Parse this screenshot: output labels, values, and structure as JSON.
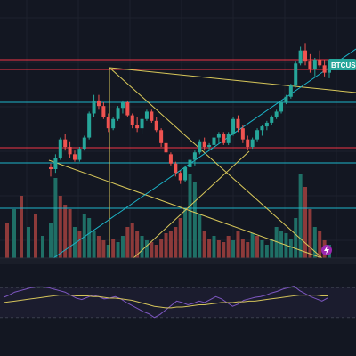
{
  "symbol": "BTCUSDT",
  "colors": {
    "background": "#131722",
    "grid": "#1e222d",
    "bull": "#26a69a",
    "bear": "#ef5350",
    "bull_volume": "#1f6f66",
    "bear_volume": "#8d3a3a",
    "red_line": "#f23645",
    "cyan_line": "#1cb5c9",
    "yellow_line": "#d9c85a",
    "rsi_line": "#7e57c2",
    "rsi_ma": "#d4c35a",
    "badge": "#26a69a",
    "separator": "#2a2e39",
    "purple_icon": "#9c27b0"
  },
  "icons": [
    "lightning-icon"
  ],
  "candles": [
    [
      46.5,
      47.5,
      44.0,
      46.0
    ],
    [
      46.0,
      50.0,
      45.0,
      49.0
    ],
    [
      49.0,
      54.5,
      48.5,
      54.0
    ],
    [
      54.0,
      55.5,
      51.0,
      52.0
    ],
    [
      52.0,
      53.5,
      49.0,
      50.0
    ],
    [
      50.0,
      51.0,
      48.0,
      48.5
    ],
    [
      48.5,
      52.0,
      48.0,
      51.5
    ],
    [
      51.5,
      55.0,
      51.0,
      54.5
    ],
    [
      54.5,
      61.5,
      54.0,
      61.0
    ],
    [
      61.0,
      66.0,
      60.0,
      64.5
    ],
    [
      64.5,
      66.0,
      62.0,
      63.0
    ],
    [
      63.0,
      64.0,
      59.5,
      60.0
    ],
    [
      60.0,
      61.0,
      56.0,
      57.0
    ],
    [
      57.0,
      60.0,
      56.5,
      59.5
    ],
    [
      59.5,
      63.0,
      59.0,
      62.5
    ],
    [
      62.5,
      64.5,
      61.0,
      64.0
    ],
    [
      64.0,
      64.5,
      60.0,
      60.5
    ],
    [
      60.5,
      61.0,
      57.0,
      58.0
    ],
    [
      58.0,
      60.0,
      56.0,
      57.0
    ],
    [
      57.0,
      60.0,
      55.5,
      59.5
    ],
    [
      59.5,
      62.0,
      59.0,
      61.5
    ],
    [
      61.5,
      62.0,
      58.5,
      59.0
    ],
    [
      59.0,
      60.0,
      56.0,
      56.5
    ],
    [
      56.5,
      57.0,
      52.0,
      53.0
    ],
    [
      53.0,
      54.0,
      50.0,
      50.5
    ],
    [
      50.0,
      50.5,
      47.0,
      47.5
    ],
    [
      47.5,
      48.0,
      44.0,
      45.0
    ],
    [
      45.0,
      45.5,
      42.0,
      43.0
    ],
    [
      43.0,
      47.0,
      42.5,
      46.5
    ],
    [
      46.5,
      49.0,
      46.0,
      48.5
    ],
    [
      48.5,
      51.0,
      47.0,
      50.5
    ],
    [
      50.5,
      54.0,
      50.0,
      53.5
    ],
    [
      53.5,
      54.5,
      51.0,
      52.0
    ],
    [
      52.0,
      53.0,
      51.0,
      52.5
    ],
    [
      52.5,
      55.0,
      52.0,
      54.5
    ],
    [
      54.5,
      56.0,
      53.0,
      55.5
    ],
    [
      55.5,
      56.0,
      52.5,
      53.0
    ],
    [
      53.0,
      56.0,
      52.5,
      55.5
    ],
    [
      55.5,
      60.0,
      55.0,
      59.5
    ],
    [
      59.5,
      60.5,
      56.0,
      57.0
    ],
    [
      57.0,
      58.0,
      53.0,
      54.0
    ],
    [
      54.0,
      55.0,
      51.0,
      52.0
    ],
    [
      52.0,
      54.5,
      51.5,
      54.0
    ],
    [
      54.0,
      57.0,
      53.5,
      56.5
    ],
    [
      56.5,
      58.0,
      55.0,
      57.5
    ],
    [
      57.5,
      59.0,
      56.5,
      58.5
    ],
    [
      58.5,
      60.5,
      58.0,
      60.0
    ],
    [
      60.0,
      62.0,
      59.5,
      61.5
    ],
    [
      61.5,
      64.5,
      61.0,
      64.0
    ],
    [
      64.0,
      66.0,
      63.5,
      65.5
    ],
    [
      65.5,
      69.0,
      65.0,
      68.5
    ],
    [
      68.5,
      75.0,
      68.0,
      74.5
    ],
    [
      74.5,
      79.0,
      74.0,
      78.0
    ],
    [
      78.0,
      80.0,
      74.0,
      75.0
    ],
    [
      75.0,
      77.0,
      72.0,
      73.0
    ],
    [
      73.0,
      76.0,
      71.0,
      75.5
    ],
    [
      75.5,
      78.0,
      73.5,
      74.0
    ],
    [
      74.0,
      75.5,
      71.0,
      72.0
    ],
    [
      72.0,
      74.0,
      70.5,
      73.5
    ]
  ],
  "volumes": [
    [
      0.4,
      1
    ],
    [
      0.9,
      1
    ],
    [
      0.7,
      0
    ],
    [
      0.6,
      0
    ],
    [
      0.55,
      0
    ],
    [
      0.35,
      1
    ],
    [
      0.3,
      0
    ],
    [
      0.5,
      1
    ],
    [
      0.45,
      1
    ],
    [
      0.3,
      1
    ],
    [
      0.25,
      0
    ],
    [
      0.2,
      0
    ],
    [
      0.15,
      1
    ],
    [
      0.22,
      0
    ],
    [
      0.18,
      1
    ],
    [
      0.25,
      1
    ],
    [
      0.35,
      0
    ],
    [
      0.4,
      0
    ],
    [
      0.3,
      0
    ],
    [
      0.25,
      1
    ],
    [
      0.2,
      1
    ],
    [
      0.18,
      0
    ],
    [
      0.15,
      0
    ],
    [
      0.22,
      0
    ],
    [
      0.28,
      0
    ],
    [
      0.3,
      0
    ],
    [
      0.35,
      0
    ],
    [
      0.45,
      0
    ],
    [
      0.55,
      1
    ],
    [
      0.95,
      1
    ],
    [
      0.85,
      1
    ],
    [
      0.5,
      1
    ],
    [
      0.3,
      0
    ],
    [
      0.22,
      0
    ],
    [
      0.25,
      1
    ],
    [
      0.2,
      0
    ],
    [
      0.18,
      0
    ],
    [
      0.25,
      0
    ],
    [
      0.2,
      1
    ],
    [
      0.3,
      0
    ],
    [
      0.22,
      0
    ],
    [
      0.18,
      0
    ],
    [
      0.28,
      1
    ],
    [
      0.25,
      0
    ],
    [
      0.2,
      1
    ],
    [
      0.15,
      1
    ],
    [
      0.22,
      1
    ],
    [
      0.35,
      1
    ],
    [
      0.3,
      1
    ],
    [
      0.28,
      1
    ],
    [
      0.22,
      1
    ],
    [
      0.45,
      1
    ],
    [
      0.95,
      1
    ],
    [
      0.8,
      0
    ],
    [
      0.55,
      0
    ],
    [
      0.35,
      1
    ],
    [
      0.3,
      0
    ],
    [
      0.2,
      0
    ],
    [
      0.15,
      1
    ]
  ],
  "rsi": [
    57,
    60,
    64,
    66,
    68,
    70,
    71,
    71,
    70,
    68,
    66,
    64,
    60,
    56,
    54,
    57,
    60,
    58,
    55,
    56,
    58,
    55,
    50,
    46,
    42,
    38,
    35,
    30,
    34,
    40,
    46,
    52,
    50,
    47,
    49,
    52,
    50,
    54,
    58,
    55,
    50,
    45,
    48,
    53,
    55,
    57,
    58,
    60,
    63,
    65,
    68,
    70,
    72,
    66,
    62,
    58,
    55,
    52,
    56
  ],
  "rsi_ma": [
    50,
    51,
    52,
    53,
    54,
    55,
    56,
    57,
    58,
    59,
    60,
    60,
    60,
    59,
    59,
    59,
    58,
    58,
    57,
    56,
    56,
    55,
    54,
    53,
    51,
    49,
    47,
    45,
    44,
    43,
    43,
    44,
    44,
    45,
    46,
    47,
    47,
    48,
    49,
    50,
    50,
    50,
    51,
    51,
    52,
    52,
    53,
    54,
    55,
    56,
    57,
    58,
    59,
    60,
    60,
    60,
    60,
    59,
    59
  ]
}
